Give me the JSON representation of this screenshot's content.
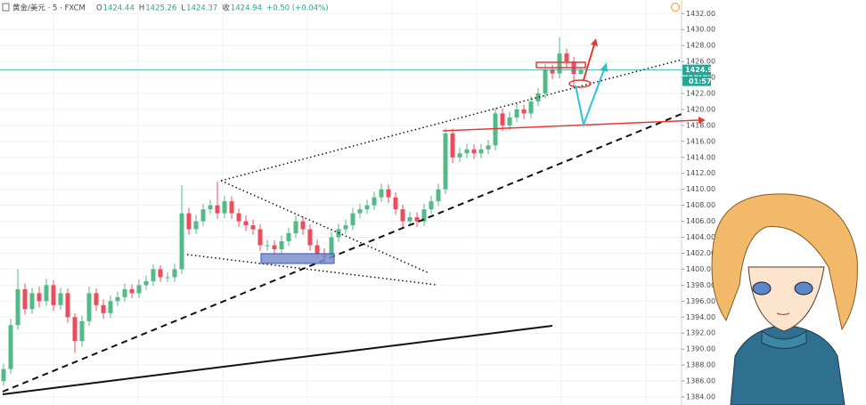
{
  "header": {
    "symbol": "黄金/美元 · 5 · FXCM",
    "fields": [
      {
        "label": "O",
        "text": "1424.44"
      },
      {
        "label": "H",
        "text": "1425.26"
      },
      {
        "label": "L",
        "text": "1424.37"
      },
      {
        "label": "收",
        "text": "1424.94"
      }
    ],
    "change": "+0.50 (+0.04%)"
  },
  "chart_data": {
    "type": "candlestick",
    "open": [
      1386,
      1387.5,
      1393,
      1397.5,
      1395,
      1397,
      1396,
      1398,
      1395.5,
      1397,
      1394,
      1391,
      1393.5,
      1397,
      1395.5,
      1394.5,
      1396,
      1396.5,
      1397.5,
      1397,
      1398,
      1398.5,
      1400,
      1399,
      1399,
      1400,
      1407,
      1405,
      1406,
      1407.5,
      1408,
      1407,
      1408.5,
      1407,
      1406,
      1405.5,
      1405,
      1403,
      1403,
      1402.5,
      1403.5,
      1404.5,
      1406,
      1405,
      1403,
      1402,
      1401.5,
      1404,
      1405,
      1405.5,
      1407,
      1407.5,
      1408,
      1409,
      1410,
      1409,
      1407.5,
      1406,
      1406.5,
      1406,
      1407.5,
      1408.5,
      1410,
      1417,
      1414,
      1414.5,
      1415,
      1414.5,
      1415,
      1415.5,
      1419.5,
      1418,
      1419,
      1420,
      1419.5,
      1421,
      1422,
      1425,
      1424.5,
      1427,
      1426,
      1424.44
    ],
    "high": [
      1388.2,
      1393.8,
      1400,
      1398.2,
      1397.7,
      1397.8,
      1398.8,
      1398.6,
      1397.7,
      1397.6,
      1394.5,
      1394.2,
      1397.8,
      1397.6,
      1396.2,
      1396.7,
      1397.2,
      1398.2,
      1398.1,
      1398.7,
      1399.2,
      1400.6,
      1400.5,
      1399.6,
      1400.7,
      1410.5,
      1407.7,
      1406.8,
      1408.2,
      1408.7,
      1411,
      1409.2,
      1409.1,
      1407.6,
      1406.7,
      1406.2,
      1405.6,
      1403.7,
      1403.6,
      1404.2,
      1405.2,
      1406.7,
      1406.6,
      1405.6,
      1403.7,
      1402.6,
      1404.7,
      1405.7,
      1406.2,
      1407.7,
      1408.2,
      1408.7,
      1409.7,
      1410.7,
      1410.6,
      1409.6,
      1408.1,
      1407.2,
      1407.1,
      1408.2,
      1409.2,
      1410.7,
      1417.6,
      1417.6,
      1415.2,
      1415.7,
      1415.6,
      1415.7,
      1416.2,
      1420.2,
      1420.1,
      1419.7,
      1420.7,
      1420.6,
      1421.7,
      1422.7,
      1425.7,
      1425.6,
      1429,
      1427.6,
      1426.6,
      1425.26
    ],
    "low": [
      1385.4,
      1386.9,
      1392.4,
      1394.3,
      1394.4,
      1395.2,
      1395.4,
      1394.8,
      1394.9,
      1393.3,
      1389.5,
      1390.3,
      1392.9,
      1394.8,
      1393.8,
      1393.9,
      1395.4,
      1395.9,
      1396.4,
      1396.4,
      1397.4,
      1397.9,
      1398.4,
      1398.4,
      1398.4,
      1399.4,
      1404.3,
      1404.4,
      1405.4,
      1406.9,
      1406.3,
      1406.4,
      1406.3,
      1405.3,
      1404.8,
      1404.3,
      1402.3,
      1402.3,
      1401.8,
      1401.9,
      1402.9,
      1403.9,
      1404.3,
      1402.3,
      1401.3,
      1400.8,
      1400.9,
      1403.4,
      1404.4,
      1404.9,
      1406.4,
      1406.9,
      1407.4,
      1408.4,
      1408.3,
      1406.8,
      1405.3,
      1405.4,
      1405.3,
      1405.4,
      1406.9,
      1407.9,
      1409.4,
      1413.3,
      1413.4,
      1413.9,
      1413.8,
      1413.9,
      1414.4,
      1414.9,
      1417.3,
      1417.4,
      1418.4,
      1418.8,
      1418.9,
      1420.4,
      1421.4,
      1423.8,
      1423.9,
      1425.3,
      1422.8,
      1424.37
    ],
    "close": [
      1387.5,
      1393,
      1397.5,
      1395,
      1397,
      1396,
      1398,
      1395.5,
      1397,
      1394,
      1391,
      1393.5,
      1397,
      1395.5,
      1394.5,
      1396,
      1396.5,
      1397.5,
      1397,
      1398,
      1398.5,
      1400,
      1399,
      1399,
      1400,
      1407,
      1405,
      1406,
      1407.5,
      1408,
      1407,
      1408.5,
      1407,
      1406,
      1405.5,
      1405,
      1403,
      1403,
      1402.5,
      1403.5,
      1404.5,
      1406,
      1405,
      1403,
      1402,
      1401.5,
      1404,
      1405,
      1405.5,
      1407,
      1407.5,
      1408,
      1409,
      1410,
      1409,
      1407.5,
      1406,
      1406.5,
      1406,
      1407.5,
      1408.5,
      1410,
      1417,
      1414,
      1414.5,
      1415,
      1414.5,
      1415,
      1415.5,
      1419.5,
      1418,
      1419,
      1420,
      1419.5,
      1421,
      1422,
      1425,
      1424.5,
      1427,
      1426,
      1424.44,
      1424.94
    ],
    "up_color": "#53b987",
    "down_color": "#eb4d5c",
    "last_price": {
      "value": 1424.94,
      "label": "1424.94"
    },
    "countdown": "01:57",
    "last_price_color": "#26a69a",
    "ylim": [
      1383,
      1433.7
    ],
    "yticks": [
      {
        "value": 1384,
        "label": "1384.00"
      },
      {
        "value": 1386,
        "label": "1386.00"
      },
      {
        "value": 1388,
        "label": "1388.00"
      },
      {
        "value": 1390,
        "label": "1390.00"
      },
      {
        "value": 1392,
        "label": "1392.00"
      },
      {
        "value": 1394,
        "label": "1394.00"
      },
      {
        "value": 1396,
        "label": "1396.00"
      },
      {
        "value": 1398,
        "label": "1398.00"
      },
      {
        "value": 1400,
        "label": "1400.00"
      },
      {
        "value": 1402,
        "label": "1402.00"
      },
      {
        "value": 1404,
        "label": "1404.00"
      },
      {
        "value": 1406,
        "label": "1406.00"
      },
      {
        "value": 1408,
        "label": "1408.00"
      },
      {
        "value": 1410,
        "label": "1410.00"
      },
      {
        "value": 1412,
        "label": "1412.00"
      },
      {
        "value": 1414,
        "label": "1414.00"
      },
      {
        "value": 1416,
        "label": "1416.00"
      },
      {
        "value": 1418,
        "label": "1418.00"
      },
      {
        "value": 1420,
        "label": "1420.00"
      },
      {
        "value": 1422,
        "label": "1422.00"
      },
      {
        "value": 1424,
        "label": "1424.00"
      },
      {
        "value": 1426,
        "label": "1426.00"
      },
      {
        "value": 1428,
        "label": "1428.00"
      },
      {
        "value": 1430,
        "label": "1430.00"
      },
      {
        "value": 1432,
        "label": "1432.00"
      }
    ],
    "grid": true
  }
}
